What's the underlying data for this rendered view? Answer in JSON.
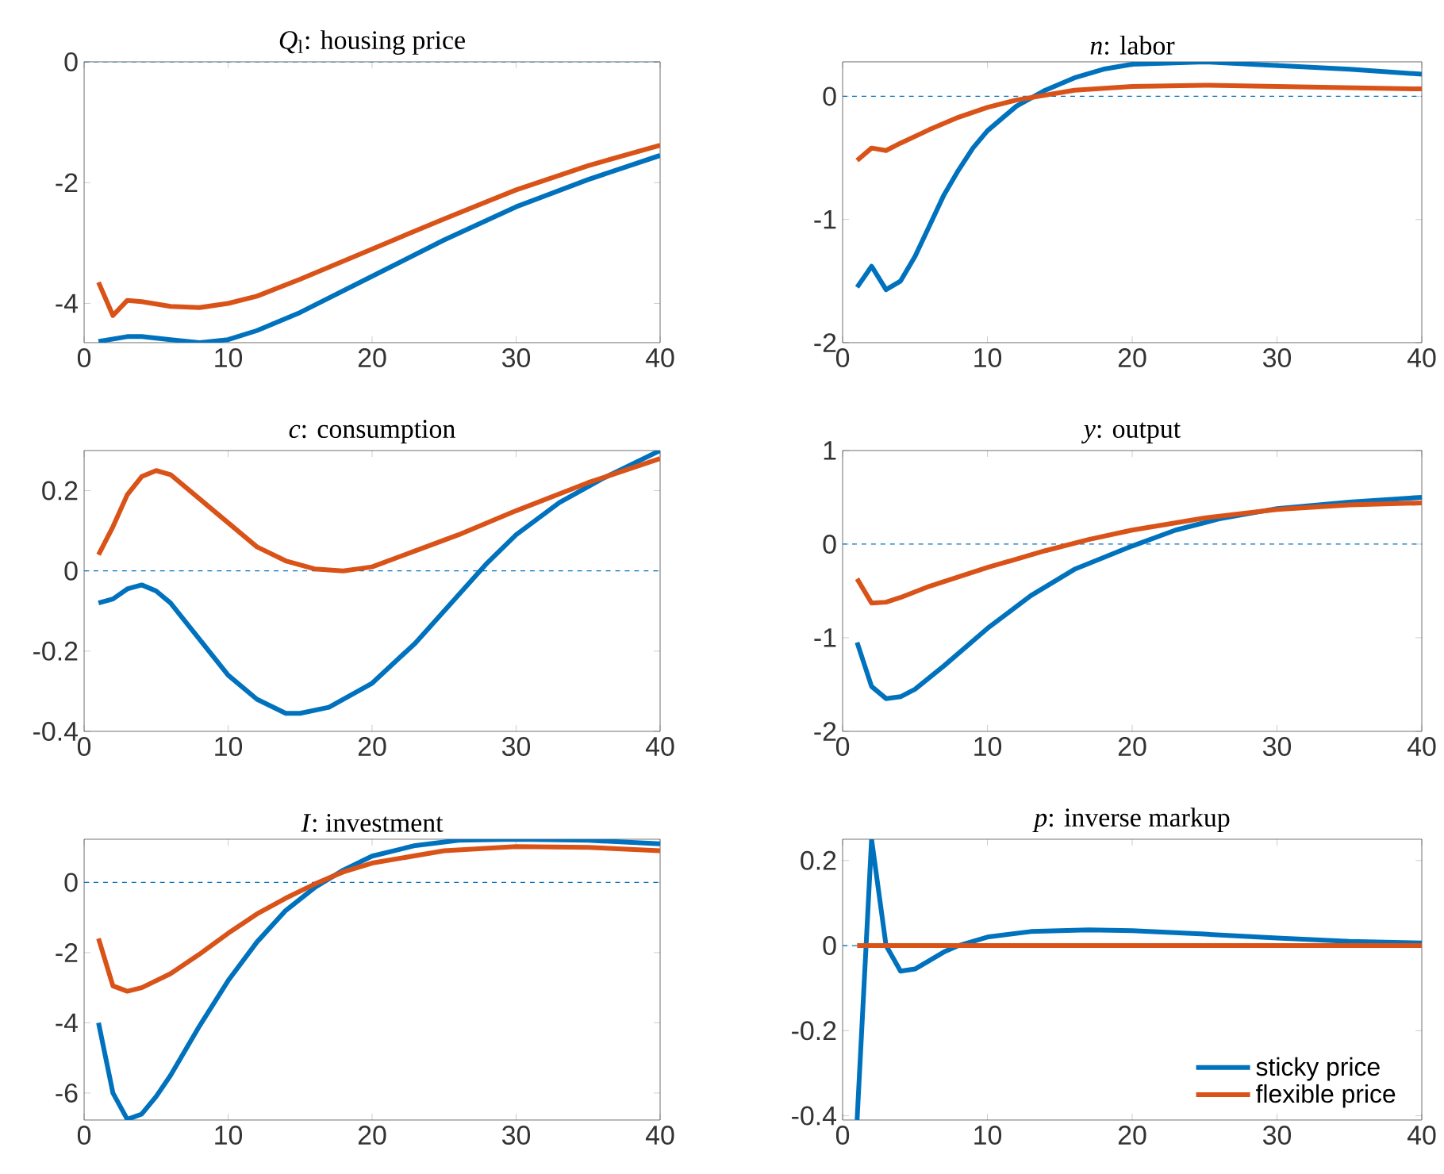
{
  "chart_data": [
    {
      "type": "line",
      "title": "*Q*$_{l}$: housing price",
      "xlim": [
        0,
        40
      ],
      "ylim": [
        -4.65,
        0
      ],
      "xticks": [
        0,
        10,
        20,
        30,
        40
      ],
      "yticks": [
        -4,
        -2,
        0
      ],
      "ref_lines": [
        {
          "axis": "y",
          "value": 0,
          "color": "#0072bd",
          "line_style": "dashed"
        }
      ],
      "series": [
        {
          "color": "#0072bd",
          "x": [
            1,
            3,
            4,
            6,
            8,
            10,
            12,
            15,
            20,
            25,
            30,
            35,
            40
          ],
          "values": [
            -4.63,
            -4.55,
            -4.55,
            -4.6,
            -4.65,
            -4.6,
            -4.45,
            -4.15,
            -3.55,
            -2.95,
            -2.4,
            -1.95,
            -1.55
          ]
        },
        {
          "color": "#d95319",
          "x": [
            1,
            2,
            3,
            4,
            6,
            8,
            10,
            12,
            15,
            20,
            25,
            30,
            35,
            40
          ],
          "values": [
            -3.65,
            -4.2,
            -3.95,
            -3.97,
            -4.05,
            -4.07,
            -4.0,
            -3.88,
            -3.6,
            -3.1,
            -2.6,
            -2.12,
            -1.72,
            -1.38
          ]
        }
      ]
    },
    {
      "type": "line",
      "title": "*n*: labor",
      "xlim": [
        0,
        40
      ],
      "ylim": [
        -2,
        0.28
      ],
      "xticks": [
        0,
        10,
        20,
        30,
        40
      ],
      "yticks": [
        -2,
        -1,
        0
      ],
      "ref_lines": [
        {
          "axis": "y",
          "value": 0,
          "color": "#0072bd",
          "line_style": "dashed"
        }
      ],
      "series": [
        {
          "color": "#0072bd",
          "x": [
            1,
            2,
            3,
            4,
            5,
            6,
            7,
            8,
            9,
            10,
            12,
            14,
            16,
            18,
            20,
            25,
            30,
            35,
            40
          ],
          "values": [
            -1.55,
            -1.38,
            -1.57,
            -1.5,
            -1.3,
            -1.05,
            -0.8,
            -0.6,
            -0.42,
            -0.28,
            -0.08,
            0.05,
            0.15,
            0.22,
            0.26,
            0.28,
            0.25,
            0.22,
            0.18
          ]
        },
        {
          "color": "#d95319",
          "x": [
            1,
            2,
            3,
            4,
            6,
            8,
            10,
            12,
            14,
            16,
            20,
            25,
            30,
            40
          ],
          "values": [
            -0.52,
            -0.42,
            -0.44,
            -0.38,
            -0.27,
            -0.17,
            -0.09,
            -0.03,
            0.01,
            0.05,
            0.08,
            0.09,
            0.08,
            0.06
          ]
        }
      ]
    },
    {
      "type": "line",
      "title": "*c*: consumption",
      "xlim": [
        0,
        40
      ],
      "ylim": [
        -0.4,
        0.3
      ],
      "xticks": [
        0,
        10,
        20,
        30,
        40
      ],
      "yticks": [
        -0.4,
        -0.2,
        0,
        0.2
      ],
      "ref_lines": [
        {
          "axis": "y",
          "value": 0,
          "color": "#0072bd",
          "line_style": "dashed"
        }
      ],
      "series": [
        {
          "color": "#0072bd",
          "x": [
            1,
            2,
            3,
            4,
            5,
            6,
            8,
            10,
            12,
            14,
            15,
            17,
            20,
            23,
            26,
            28,
            30,
            33,
            36,
            40
          ],
          "values": [
            -0.08,
            -0.07,
            -0.045,
            -0.035,
            -0.05,
            -0.08,
            -0.17,
            -0.26,
            -0.32,
            -0.355,
            -0.355,
            -0.34,
            -0.28,
            -0.18,
            -0.06,
            0.02,
            0.09,
            0.17,
            0.23,
            0.3
          ]
        },
        {
          "color": "#d95319",
          "x": [
            1,
            2,
            3,
            4,
            5,
            6,
            8,
            10,
            12,
            14,
            16,
            18,
            20,
            23,
            26,
            30,
            35,
            40
          ],
          "values": [
            0.04,
            0.11,
            0.19,
            0.235,
            0.25,
            0.24,
            0.18,
            0.12,
            0.06,
            0.025,
            0.005,
            0.0,
            0.01,
            0.05,
            0.09,
            0.15,
            0.22,
            0.28
          ]
        }
      ]
    },
    {
      "type": "line",
      "title": "*y*: output",
      "xlim": [
        0,
        40
      ],
      "ylim": [
        -2,
        1
      ],
      "xticks": [
        0,
        10,
        20,
        30,
        40
      ],
      "yticks": [
        -2,
        -1,
        0,
        1
      ],
      "ref_lines": [
        {
          "axis": "y",
          "value": 0,
          "color": "#0072bd",
          "line_style": "dashed"
        }
      ],
      "series": [
        {
          "color": "#0072bd",
          "x": [
            1,
            2,
            3,
            4,
            5,
            7,
            10,
            13,
            16,
            20,
            23,
            26,
            30,
            35,
            40
          ],
          "values": [
            -1.05,
            -1.52,
            -1.65,
            -1.63,
            -1.55,
            -1.3,
            -0.9,
            -0.55,
            -0.27,
            -0.02,
            0.15,
            0.27,
            0.38,
            0.45,
            0.5
          ]
        },
        {
          "color": "#d95319",
          "x": [
            1,
            2,
            3,
            4,
            6,
            10,
            14,
            17,
            20,
            25,
            30,
            35,
            40
          ],
          "values": [
            -0.37,
            -0.63,
            -0.62,
            -0.57,
            -0.45,
            -0.25,
            -0.07,
            0.05,
            0.15,
            0.28,
            0.37,
            0.42,
            0.44
          ]
        }
      ]
    },
    {
      "type": "line",
      "title": "*I*: investment",
      "xlim": [
        0,
        40
      ],
      "ylim": [
        -6.77,
        1.23
      ],
      "xticks": [
        0,
        10,
        20,
        30,
        40
      ],
      "yticks": [
        -6,
        -4,
        -2,
        0
      ],
      "ref_lines": [
        {
          "axis": "y",
          "value": 0,
          "color": "#0072bd",
          "line_style": "dashed"
        }
      ],
      "series": [
        {
          "color": "#0072bd",
          "x": [
            1,
            2,
            3,
            4,
            5,
            6,
            8,
            10,
            12,
            14,
            16,
            18,
            20,
            23,
            26,
            30,
            35,
            40
          ],
          "values": [
            -4.0,
            -6.0,
            -6.75,
            -6.6,
            -6.1,
            -5.5,
            -4.1,
            -2.8,
            -1.7,
            -0.8,
            -0.15,
            0.35,
            0.75,
            1.05,
            1.2,
            1.23,
            1.2,
            1.1
          ]
        },
        {
          "color": "#d95319",
          "x": [
            1,
            2,
            3,
            4,
            6,
            8,
            10,
            12,
            14,
            16,
            18,
            20,
            25,
            30,
            35,
            40
          ],
          "values": [
            -1.6,
            -2.95,
            -3.1,
            -3.0,
            -2.6,
            -2.05,
            -1.45,
            -0.9,
            -0.45,
            -0.05,
            0.3,
            0.55,
            0.9,
            1.02,
            1.0,
            0.9
          ]
        }
      ]
    },
    {
      "type": "line",
      "title": "*p*: inverse markup",
      "xlim": [
        0,
        40
      ],
      "ylim": [
        -0.41,
        0.25
      ],
      "xticks": [
        0,
        10,
        20,
        30,
        40
      ],
      "yticks": [
        -0.4,
        -0.2,
        0,
        0.2
      ],
      "legend": "bottom right",
      "ref_lines": [
        {
          "axis": "y",
          "value": 0,
          "color": "#0072bd",
          "line_style": "dashed"
        }
      ],
      "series": [
        {
          "name": "sticky price",
          "color": "#0072bd",
          "x": [
            1,
            2,
            3,
            4,
            5,
            6,
            7,
            8,
            10,
            13,
            17,
            20,
            25,
            30,
            35,
            40
          ],
          "values": [
            -0.41,
            0.25,
            0.0,
            -0.06,
            -0.055,
            -0.035,
            -0.015,
            0.0,
            0.02,
            0.033,
            0.037,
            0.035,
            0.027,
            0.018,
            0.01,
            0.006
          ]
        },
        {
          "name": "flexible price",
          "color": "#d95319",
          "x": [
            1,
            40
          ],
          "values": [
            0,
            0
          ]
        }
      ]
    }
  ]
}
